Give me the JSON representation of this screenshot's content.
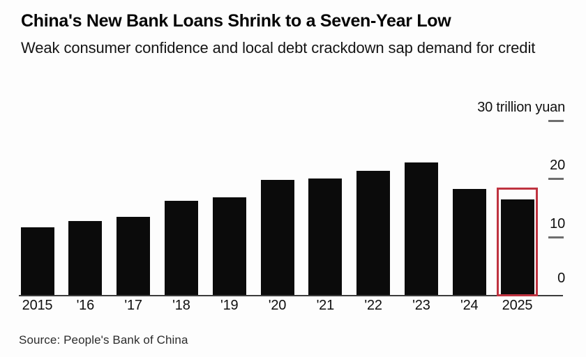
{
  "header": {
    "title": "China's New Bank Loans Shrink to a Seven-Year Low",
    "subtitle": "Weak consumer confidence and local debt crackdown sap demand for credit"
  },
  "chart_data": {
    "type": "bar",
    "title": "China's New Bank Loans Shrink to a Seven-Year Low",
    "subtitle": "Weak consumer confidence and local debt crackdown sap demand for credit",
    "categories": [
      "2015",
      "'16",
      "'17",
      "'18",
      "'19",
      "'20",
      "'21",
      "'22",
      "'23",
      "'24",
      "2025"
    ],
    "values": [
      11.7,
      12.7,
      13.5,
      16.2,
      16.8,
      19.8,
      20.0,
      21.4,
      22.8,
      18.3,
      16.4
    ],
    "unit": "trillion yuan",
    "ylim": [
      0,
      30
    ],
    "grid": false,
    "legend": "none",
    "axis_side": "right",
    "y_ticks": [
      {
        "label": "30 trillion yuan",
        "value": 30,
        "dash": true
      },
      {
        "label": "20",
        "value": 20,
        "dash": true
      },
      {
        "label": "10",
        "value": 10,
        "dash": true
      },
      {
        "label": "0",
        "value": 0,
        "dash": false
      }
    ],
    "colors": {
      "bar": "#0b0b0b",
      "axis_line": "#3c3c3c",
      "tick_dash": "#6e6e6e",
      "highlight_box": "#bf3340"
    },
    "highlight": {
      "category": "2025",
      "index": 10,
      "box_top_value": 18.5
    }
  },
  "footer": {
    "source": "Source: People's Bank of China"
  }
}
